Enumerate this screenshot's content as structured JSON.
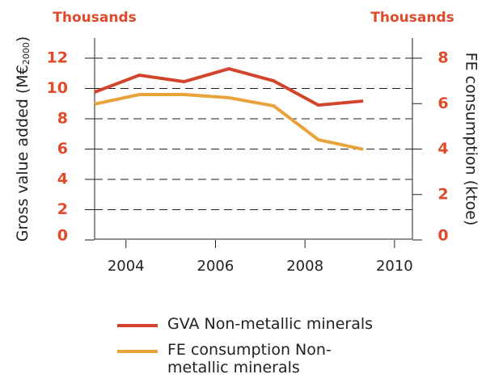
{
  "chart_data": {
    "type": "line",
    "y_unit": "Thousands",
    "y2_unit": "Thousands",
    "y_label": {
      "text": "Gross value added (M€",
      "sub": "2000",
      "end": ")"
    },
    "y2_label": "FE consumption (ktoe)",
    "x": [
      2003.3,
      2004.3,
      2005.3,
      2006.3,
      2007.3,
      2008.3,
      2009.3
    ],
    "xlim": [
      2003.3,
      2010.4
    ],
    "xticks": [
      2004,
      2006,
      2008,
      2010
    ],
    "ylim": [
      0,
      12
    ],
    "yticks": [
      0,
      2,
      4,
      6,
      8,
      10,
      12
    ],
    "y2lim": [
      0,
      8
    ],
    "y2ticks": [
      0,
      2,
      4,
      6,
      8
    ],
    "grid": true,
    "series": [
      {
        "name": "GVA Non-metallic minerals",
        "color": "#d2452c",
        "values": [
          9.76,
          10.88,
          10.45,
          11.3,
          10.5,
          8.9,
          9.17
        ]
      },
      {
        "name": "FE consumption Non-metallic minerals",
        "color": "#e8a33c",
        "axis": "y2",
        "values": [
          5.98,
          6.4,
          6.4,
          6.26,
          5.9,
          4.41,
          3.99
        ]
      }
    ]
  }
}
